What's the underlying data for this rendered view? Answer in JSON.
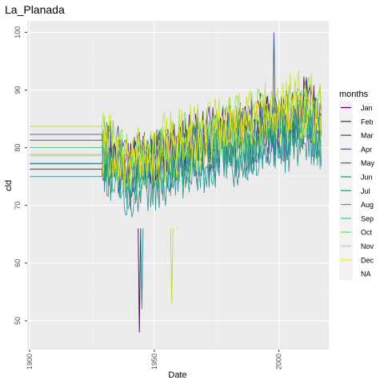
{
  "chart_data": {
    "type": "line",
    "title": "La_Planada",
    "xlabel": "Date",
    "ylabel": "cld",
    "xlim": [
      1899,
      2020
    ],
    "ylim": [
      45,
      102
    ],
    "x_ticks": [
      "1900",
      "1950",
      "2000"
    ],
    "x_tick_values": [
      1900,
      1950,
      2000
    ],
    "y_ticks": [
      "50",
      "60",
      "70",
      "80",
      "90",
      "100"
    ],
    "y_tick_values": [
      50,
      60,
      70,
      80,
      90,
      100
    ],
    "grid": true,
    "legend": {
      "title": "months",
      "position": "right"
    },
    "series": [
      {
        "name": "Jan",
        "color": "#440154",
        "flat_value": 76.3,
        "values": [
          [
            1930,
            79
          ],
          [
            1940,
            77
          ],
          [
            1950,
            78
          ],
          [
            1960,
            80
          ],
          [
            1970,
            82
          ],
          [
            1980,
            83
          ],
          [
            1990,
            84
          ],
          [
            2000,
            86
          ],
          [
            2010,
            88
          ],
          [
            2017,
            85
          ]
        ]
      },
      {
        "name": "Feb",
        "color": "#482173",
        "flat_value": 82.3,
        "values": [
          [
            1930,
            80
          ],
          [
            1940,
            76
          ],
          [
            1950,
            78
          ],
          [
            1960,
            81
          ],
          [
            1970,
            82
          ],
          [
            1980,
            83
          ],
          [
            1990,
            84
          ],
          [
            2000,
            85
          ],
          [
            2010,
            87
          ],
          [
            2017,
            85
          ]
        ]
      },
      {
        "name": "Mar",
        "color": "#433E85",
        "flat_value": 81.3,
        "values": [
          [
            1930,
            81
          ],
          [
            1940,
            77
          ],
          [
            1950,
            79
          ],
          [
            1960,
            80
          ],
          [
            1970,
            81
          ],
          [
            1980,
            82
          ],
          [
            1990,
            83
          ],
          [
            2000,
            84
          ],
          [
            2010,
            86
          ],
          [
            2017,
            84
          ]
        ]
      },
      {
        "name": "Apr",
        "color": "#38598C",
        "flat_value": 80.0,
        "values": [
          [
            1930,
            80
          ],
          [
            1940,
            76
          ],
          [
            1950,
            78
          ],
          [
            1960,
            79
          ],
          [
            1970,
            80
          ],
          [
            1980,
            81
          ],
          [
            1990,
            82
          ],
          [
            2000,
            83
          ],
          [
            2010,
            85
          ],
          [
            2017,
            83
          ]
        ]
      },
      {
        "name": "May",
        "color": "#2D708E",
        "flat_value": 77.3,
        "values": [
          [
            1930,
            78
          ],
          [
            1940,
            74
          ],
          [
            1950,
            76
          ],
          [
            1960,
            77
          ],
          [
            1970,
            79
          ],
          [
            1980,
            80
          ],
          [
            1990,
            81
          ],
          [
            2000,
            82
          ],
          [
            2010,
            84
          ],
          [
            2017,
            82
          ]
        ]
      },
      {
        "name": "Jun",
        "color": "#25858E",
        "flat_value": 75.0,
        "values": [
          [
            1930,
            76
          ],
          [
            1940,
            72
          ],
          [
            1950,
            74
          ],
          [
            1960,
            75
          ],
          [
            1970,
            77
          ],
          [
            1980,
            78
          ],
          [
            1990,
            79
          ],
          [
            2000,
            80
          ],
          [
            2010,
            82
          ],
          [
            2017,
            80
          ]
        ]
      },
      {
        "name": "Jul",
        "color": "#1E9B8A",
        "flat_value": 77.2,
        "values": [
          [
            1930,
            77
          ],
          [
            1940,
            73
          ],
          [
            1950,
            75
          ],
          [
            1960,
            76
          ],
          [
            1970,
            78
          ],
          [
            1980,
            79
          ],
          [
            1990,
            80
          ],
          [
            2000,
            81
          ],
          [
            2010,
            83
          ],
          [
            2017,
            81
          ]
        ]
      },
      {
        "name": "Aug",
        "color": "#2BB07F",
        "flat_value": 78.7,
        "values": [
          [
            1930,
            78
          ],
          [
            1940,
            75
          ],
          [
            1950,
            77
          ],
          [
            1960,
            78
          ],
          [
            1970,
            80
          ],
          [
            1980,
            81
          ],
          [
            1990,
            82
          ],
          [
            2000,
            83
          ],
          [
            2010,
            85
          ],
          [
            2017,
            83
          ]
        ]
      },
      {
        "name": "Sep",
        "color": "#51C56A",
        "flat_value": 80.0,
        "values": [
          [
            1930,
            80
          ],
          [
            1940,
            76
          ],
          [
            1950,
            78
          ],
          [
            1960,
            79
          ],
          [
            1970,
            81
          ],
          [
            1980,
            82
          ],
          [
            1990,
            83
          ],
          [
            2000,
            84
          ],
          [
            2010,
            86
          ],
          [
            2017,
            84
          ]
        ]
      },
      {
        "name": "Oct",
        "color": "#85D54A",
        "flat_value": 83.7,
        "values": [
          [
            1930,
            82
          ],
          [
            1940,
            78
          ],
          [
            1950,
            80
          ],
          [
            1960,
            81
          ],
          [
            1970,
            83
          ],
          [
            1980,
            84
          ],
          [
            1990,
            85
          ],
          [
            2000,
            86
          ],
          [
            2010,
            88
          ],
          [
            2017,
            86
          ]
        ]
      },
      {
        "name": "Nov",
        "color": "#C2DF23",
        "flat_value": 83.7,
        "values": [
          [
            1930,
            83
          ],
          [
            1940,
            79
          ],
          [
            1950,
            81
          ],
          [
            1960,
            82
          ],
          [
            1970,
            84
          ],
          [
            1980,
            85
          ],
          [
            1990,
            86
          ],
          [
            2000,
            87
          ],
          [
            2010,
            89
          ],
          [
            2017,
            87
          ]
        ]
      },
      {
        "name": "Dec",
        "color": "#FDE725",
        "flat_value": 79.0,
        "values": [
          [
            1930,
            79
          ],
          [
            1940,
            76
          ],
          [
            1950,
            78
          ],
          [
            1960,
            79
          ],
          [
            1970,
            81
          ],
          [
            1980,
            82
          ],
          [
            1990,
            83
          ],
          [
            2000,
            84
          ],
          [
            2010,
            86
          ],
          [
            2017,
            84
          ]
        ]
      },
      {
        "name": "NA",
        "color": "#D9D9D9",
        "values": []
      }
    ],
    "notable_extremes": [
      [
        1944,
        48
      ],
      [
        1945,
        52
      ],
      [
        1957,
        53
      ],
      [
        1998,
        100
      ]
    ]
  }
}
